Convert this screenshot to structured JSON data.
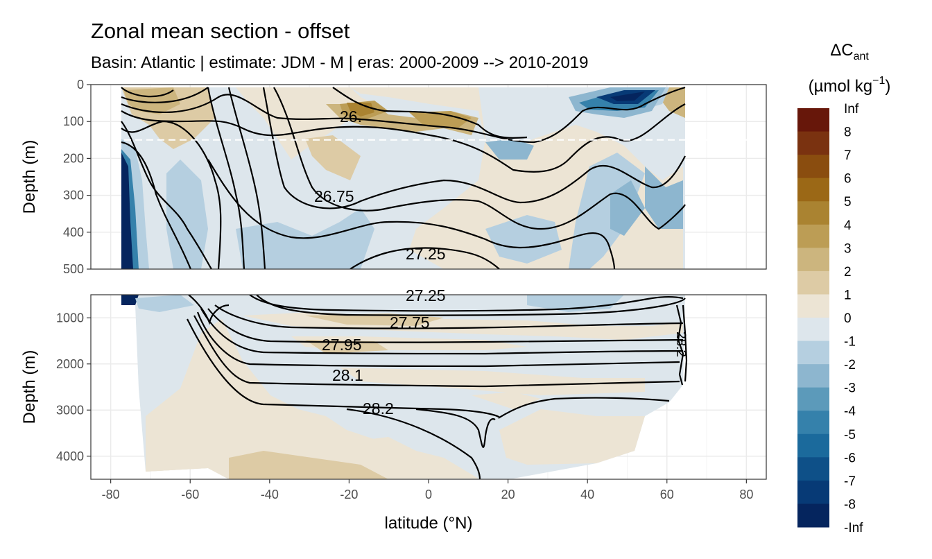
{
  "chart_data": {
    "type": "heatmap",
    "title": "Zonal mean section - offset",
    "subtitle": "Basin: Atlantic | estimate: JDM - M | eras: 2000-2009 --> 2010-2019",
    "xlabel": "latitude (°N)",
    "ylabel": "Depth (m)",
    "xlim": [
      -85,
      85
    ],
    "x_ticks": [
      -80,
      -60,
      -40,
      -20,
      0,
      20,
      40,
      60,
      80
    ],
    "x_tick_labels": [
      "-80",
      "-60",
      "-40",
      "-20",
      "0",
      "20",
      "40",
      "60",
      "80"
    ],
    "panels": [
      {
        "name": "upper",
        "ylim": [
          0,
          500
        ],
        "y_ticks": [
          0,
          100,
          200,
          300,
          400,
          500
        ],
        "y_tick_labels": [
          "0",
          "100",
          "200",
          "300",
          "400",
          "500"
        ],
        "reference_line_depth": 150,
        "contour_labels": [
          "26.",
          "26.75",
          "27.25"
        ]
      },
      {
        "name": "lower",
        "ylim": [
          500,
          4500
        ],
        "y_ticks": [
          1000,
          2000,
          3000,
          4000
        ],
        "y_tick_labels": [
          "1000",
          "2000",
          "3000",
          "4000"
        ],
        "contour_labels": [
          "27.25",
          "27.75",
          "27.95",
          "28.1",
          "28.2",
          "28.2"
        ]
      }
    ],
    "legend": {
      "title_main": "ΔC",
      "title_sub": "ant",
      "unit_main": "(µmol kg",
      "unit_sup": "−1",
      "unit_close": ")",
      "placement": "right",
      "labels": [
        "Inf",
        "8",
        "7",
        "6",
        "5",
        "4",
        "3",
        "2",
        "1",
        "0",
        "-1",
        "-2",
        "-3",
        "-4",
        "-5",
        "-6",
        "-7",
        "-8",
        "-Inf"
      ],
      "colors": [
        "#67170a",
        "#7a3210",
        "#8a4d0f",
        "#9b6816",
        "#aa8331",
        "#bc9d55",
        "#ccb57e",
        "#ddcba5",
        "#ece4d4",
        "#dde6ec",
        "#b5cfe0",
        "#8db6cf",
        "#5c9aba",
        "#3581ab",
        "#1b6a9c",
        "#0e5088",
        "#073a76",
        "#05255e"
      ]
    }
  }
}
